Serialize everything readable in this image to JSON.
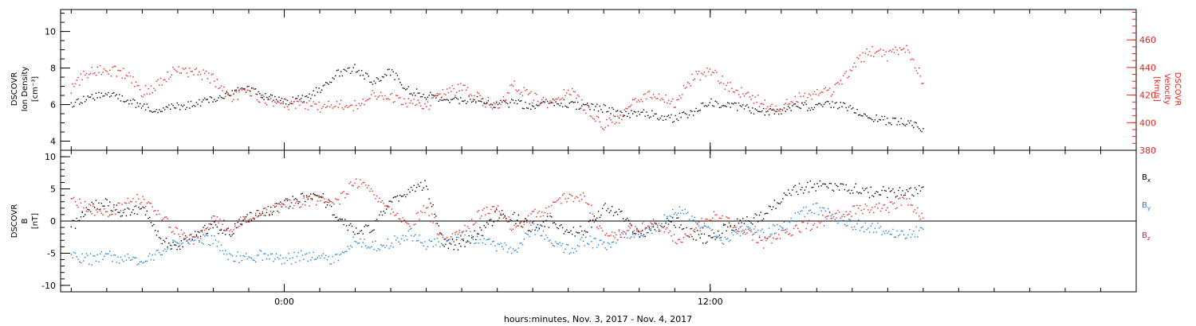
{
  "chart_data": [
    {
      "type": "scatter",
      "panel": "top",
      "xlabel": "hours:minutes, Nov.  3, 2017 - Nov.  4, 2017",
      "x_ticks": [
        {
          "hour": 0,
          "label": "0:00"
        },
        {
          "hour": 12,
          "label": "12:00"
        }
      ],
      "xlim_hours": [
        -6.3,
        24
      ],
      "ylabel_left": [
        "DSCOVR",
        "Ion Density",
        "[cm⁻³]"
      ],
      "ylim_left": [
        3.5,
        11.2
      ],
      "yticks_left": [
        4,
        6,
        8,
        10
      ],
      "ylabel_right": [
        "DSCOVR",
        "Velocity",
        "[km/s]"
      ],
      "ylim_right": [
        380,
        482
      ],
      "yticks_right": [
        380,
        400,
        420,
        440,
        460
      ],
      "series": [
        {
          "axis": "left",
          "color": "#000000",
          "x_hours": [
            -6.0,
            -5.5,
            -5.0,
            -4.5,
            -4.0,
            -3.5,
            -3.0,
            -2.5,
            -2.0,
            -1.5,
            -1.0,
            -0.5,
            0.0,
            0.5,
            1.0,
            1.5,
            2.0,
            2.5,
            3.0,
            3.5,
            4.0,
            4.5,
            5.0,
            5.5,
            6.0,
            6.5,
            7.0,
            7.5,
            8.0,
            8.5,
            9.0,
            9.5,
            10.0,
            10.5,
            11.0,
            11.5,
            12.0,
            12.5,
            13.0,
            13.5,
            14.0,
            14.5,
            15.0,
            15.5,
            16.0,
            16.5,
            17.0,
            17.5,
            18.0
          ],
          "values": [
            5.9,
            6.4,
            6.6,
            6.3,
            5.9,
            5.7,
            5.9,
            6.0,
            6.3,
            6.7,
            6.8,
            6.4,
            6.1,
            6.3,
            6.8,
            7.7,
            8.0,
            7.2,
            7.8,
            6.8,
            6.5,
            6.3,
            6.2,
            6.3,
            6.0,
            6.1,
            5.9,
            6.2,
            6.0,
            5.9,
            5.8,
            5.4,
            5.6,
            5.4,
            5.2,
            5.6,
            6.1,
            6.0,
            5.8,
            5.6,
            5.7,
            5.9,
            5.9,
            6.0,
            5.8,
            5.3,
            5.1,
            5.0,
            4.7
          ]
        },
        {
          "axis": "right",
          "color": "#e8221b",
          "x_hours": [
            -6.0,
            -5.5,
            -5.0,
            -4.5,
            -4.0,
            -3.5,
            -3.0,
            -2.5,
            -2.0,
            -1.5,
            -1.0,
            -0.5,
            0.0,
            0.5,
            1.0,
            1.5,
            2.0,
            2.5,
            3.0,
            3.5,
            4.0,
            4.5,
            5.0,
            5.5,
            6.0,
            6.5,
            7.0,
            7.5,
            8.0,
            8.5,
            9.0,
            9.5,
            10.0,
            10.5,
            11.0,
            11.5,
            12.0,
            12.5,
            13.0,
            13.5,
            14.0,
            14.5,
            15.0,
            15.5,
            16.0,
            16.5,
            17.0,
            17.5,
            18.0
          ],
          "values": [
            425,
            437,
            438,
            436,
            422,
            428,
            439,
            436,
            432,
            418,
            423,
            416,
            413,
            414,
            411,
            414,
            412,
            420,
            418,
            414,
            411,
            421,
            425,
            417,
            412,
            427,
            418,
            413,
            424,
            410,
            398,
            404,
            418,
            421,
            414,
            432,
            438,
            426,
            420,
            414,
            411,
            418,
            420,
            424,
            440,
            452,
            448,
            455,
            430
          ]
        }
      ]
    },
    {
      "type": "scatter",
      "panel": "bottom",
      "xlabel": "hours:minutes, Nov.  3, 2017 - Nov.  4, 2017",
      "x_ticks": [
        {
          "hour": 0,
          "label": "0:00"
        },
        {
          "hour": 12,
          "label": "12:00"
        }
      ],
      "xlim_hours": [
        -6.3,
        24
      ],
      "ylabel_left": [
        "DSCOVR",
        "B",
        "[nT]"
      ],
      "ylim_left": [
        -11,
        11
      ],
      "yticks_left": [
        -10,
        -5,
        0,
        5,
        10
      ],
      "zero_line": true,
      "series": [
        {
          "name": "Bx",
          "color": "#000000",
          "x_hours": [
            -6.0,
            -5.5,
            -5.0,
            -4.5,
            -4.0,
            -3.5,
            -3.0,
            -2.5,
            -2.0,
            -1.5,
            -1.0,
            -0.5,
            0.0,
            0.5,
            1.0,
            1.5,
            2.0,
            2.5,
            3.0,
            3.5,
            4.0,
            4.5,
            5.0,
            5.5,
            6.0,
            6.5,
            7.0,
            7.5,
            8.0,
            8.5,
            9.0,
            9.5,
            10.0,
            10.5,
            11.0,
            11.5,
            12.0,
            12.5,
            13.0,
            13.5,
            14.0,
            14.5,
            15.0,
            15.5,
            16.0,
            16.5,
            17.0,
            17.5,
            18.0
          ],
          "values": [
            -1.0,
            2.0,
            3.0,
            1.0,
            2.0,
            -3.0,
            -4.0,
            -2.0,
            -1.0,
            -1.5,
            0.5,
            1.5,
            2.5,
            3.5,
            4.0,
            1.0,
            -2.0,
            -1.0,
            3.0,
            4.5,
            5.5,
            -4.0,
            -3.5,
            -2.0,
            1.0,
            0.5,
            -1.0,
            0.0,
            -2.0,
            -1.5,
            2.0,
            1.0,
            -2.0,
            -1.0,
            0.0,
            -2.0,
            -3.0,
            -1.0,
            0.0,
            1.0,
            3.5,
            5.0,
            5.5,
            5.5,
            5.0,
            4.5,
            4.5,
            4.5,
            4.8
          ]
        },
        {
          "name": "By",
          "color": "#1a7fd4",
          "x_hours": [
            -6.0,
            -5.5,
            -5.0,
            -4.5,
            -4.0,
            -3.5,
            -3.0,
            -2.5,
            -2.0,
            -1.5,
            -1.0,
            -0.5,
            0.0,
            0.5,
            1.0,
            1.5,
            2.0,
            2.5,
            3.0,
            3.5,
            4.0,
            4.5,
            5.0,
            5.5,
            6.0,
            6.5,
            7.0,
            7.5,
            8.0,
            8.5,
            9.0,
            9.5,
            10.0,
            10.5,
            11.0,
            11.5,
            12.0,
            12.5,
            13.0,
            13.5,
            14.0,
            14.5,
            15.0,
            15.5,
            16.0,
            16.5,
            17.0,
            17.5,
            18.0
          ],
          "values": [
            -5.5,
            -6.0,
            -5.5,
            -6.0,
            -6.0,
            -5.0,
            -3.5,
            -2.5,
            -3.0,
            -5.5,
            -6.0,
            -5.0,
            -6.0,
            -5.5,
            -5.5,
            -6.0,
            -3.0,
            -4.0,
            -3.5,
            -2.0,
            -3.5,
            -3.0,
            -2.0,
            -3.0,
            -4.0,
            -4.5,
            -1.0,
            -3.0,
            -4.5,
            -3.0,
            -4.0,
            -2.0,
            -2.0,
            -1.0,
            2.0,
            0.5,
            -2.0,
            -3.0,
            -1.0,
            -2.0,
            -1.0,
            1.0,
            2.0,
            0.5,
            -0.5,
            -1.0,
            -1.5,
            -2.0,
            -1.5
          ]
        },
        {
          "name": "Bz",
          "color": "#e8221b",
          "x_hours": [
            -6.0,
            -5.5,
            -5.0,
            -4.5,
            -4.0,
            -3.5,
            -3.0,
            -2.5,
            -2.0,
            -1.5,
            -1.0,
            -0.5,
            0.0,
            0.5,
            1.0,
            1.5,
            2.0,
            2.5,
            3.0,
            3.5,
            4.0,
            4.5,
            5.0,
            5.5,
            6.0,
            6.5,
            7.0,
            7.5,
            8.0,
            8.5,
            9.0,
            9.5,
            10.0,
            10.5,
            11.0,
            11.5,
            12.0,
            12.5,
            13.0,
            13.5,
            14.0,
            14.5,
            15.0,
            15.5,
            16.0,
            16.5,
            17.0,
            17.5,
            18.0
          ],
          "values": [
            3.0,
            2.0,
            1.0,
            2.5,
            3.5,
            1.0,
            -2.0,
            -3.0,
            0.0,
            -1.0,
            0.5,
            1.5,
            2.5,
            3.0,
            3.5,
            3.0,
            6.0,
            4.5,
            2.0,
            -1.0,
            2.0,
            -3.0,
            -2.0,
            1.0,
            2.5,
            -1.5,
            1.0,
            2.0,
            4.0,
            3.5,
            -2.5,
            -2.0,
            -1.0,
            -0.5,
            -3.0,
            -2.0,
            1.0,
            0.0,
            -1.5,
            -3.5,
            -2.0,
            -1.0,
            -0.5,
            1.0,
            1.5,
            2.0,
            2.0,
            3.5,
            0.5
          ]
        }
      ],
      "legend": [
        {
          "main": "B",
          "sub": "x",
          "color": "#000000"
        },
        {
          "main": "B",
          "sub": "y",
          "color": "#1a7fd4"
        },
        {
          "main": "B",
          "sub": "z",
          "color": "#e8221b"
        }
      ]
    }
  ]
}
